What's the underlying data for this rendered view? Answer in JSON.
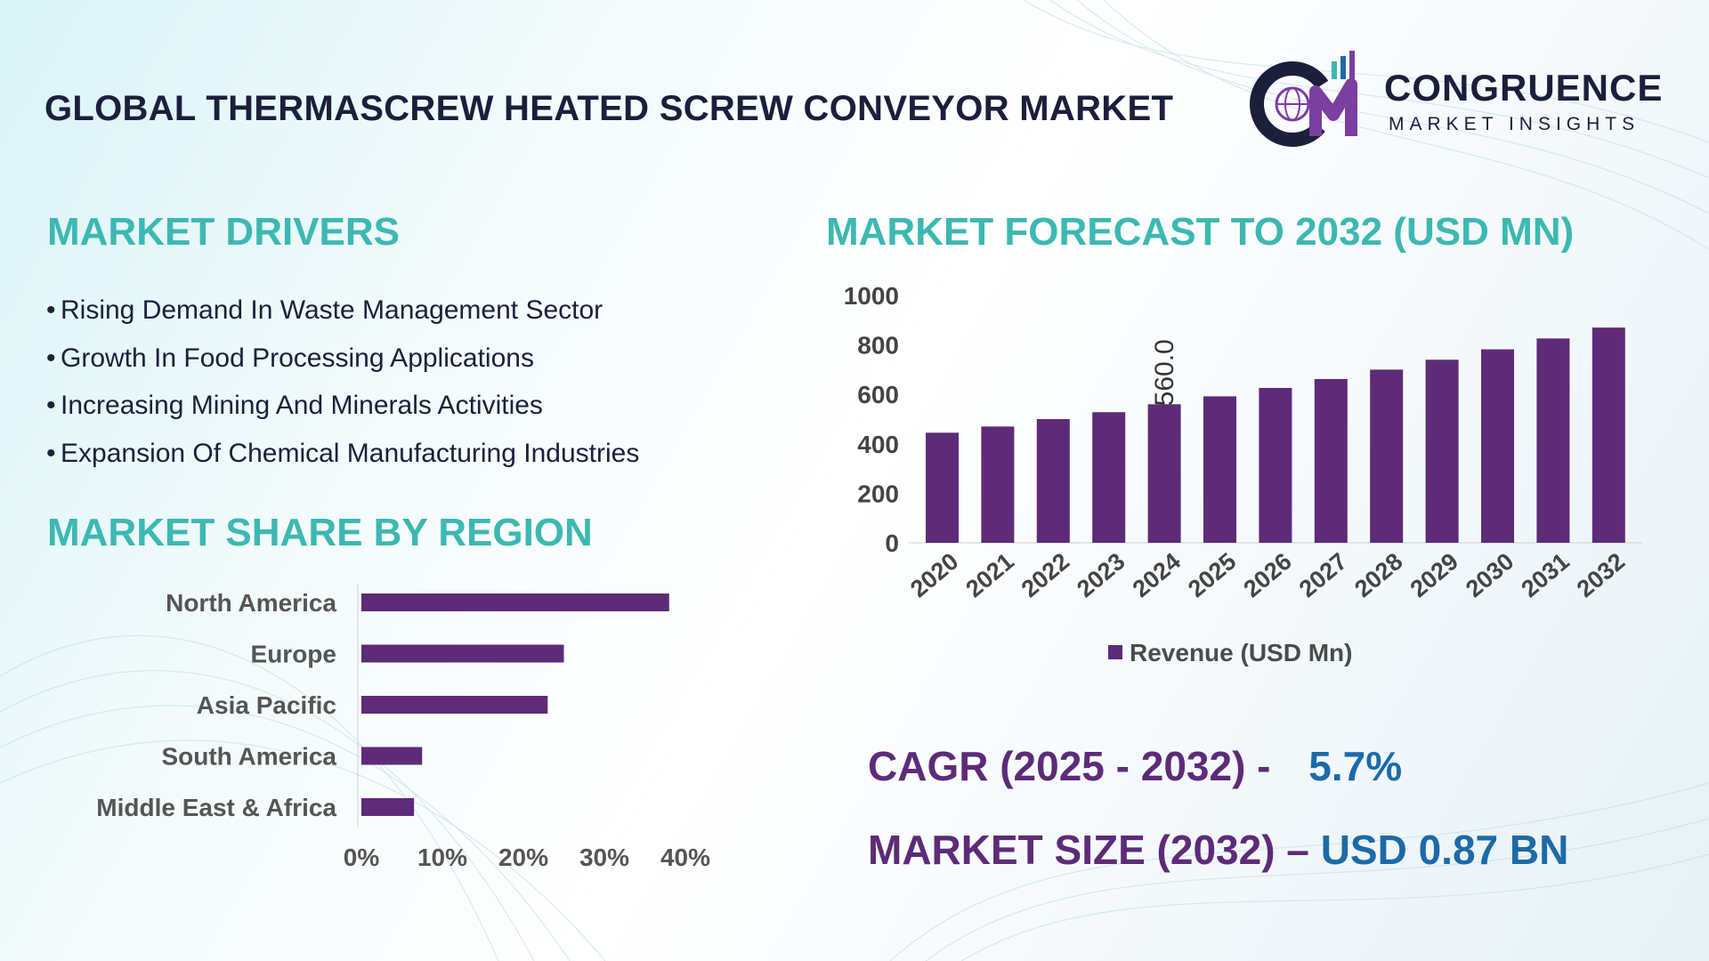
{
  "header": {
    "title": "GLOBAL THERMASCREW HEATED SCREW CONVEYOR MARKET",
    "logo_name": "CONGRUENCE",
    "logo_tagline": "MARKET INSIGHTS"
  },
  "drivers": {
    "heading": "MARKET DRIVERS",
    "items": [
      "Rising Demand In Waste Management Sector",
      "Growth In Food Processing Applications",
      "Increasing Mining And Minerals Activities",
      "Expansion Of Chemical Manufacturing Industries"
    ]
  },
  "region": {
    "heading": "MARKET SHARE BY REGION"
  },
  "forecast": {
    "heading": "MARKET FORECAST TO 2032 (USD MN)"
  },
  "stats": {
    "cagr_label": "CAGR (2025 - 2032) -",
    "cagr_value": "5.7%",
    "size_label": "MARKET SIZE (2032) –",
    "size_value": "USD 0.87 BN"
  },
  "colors": {
    "bar": "#5d2b78",
    "heading": "#3cb8b2",
    "title": "#1b1f3b",
    "value_blue": "#1c6aa8"
  },
  "chart_data": [
    {
      "type": "bar",
      "orientation": "horizontal",
      "categories": [
        "North America",
        "Europe",
        "Asia Pacific",
        "South America",
        "Middle East & Africa"
      ],
      "values": [
        38,
        25,
        23,
        7.5,
        6.5
      ],
      "unit": "%",
      "xticks": [
        "0%",
        "10%",
        "20%",
        "30%",
        "40%"
      ],
      "xlim": [
        0,
        40
      ]
    },
    {
      "type": "bar",
      "categories": [
        "2020",
        "2021",
        "2022",
        "2023",
        "2024",
        "2025",
        "2026",
        "2027",
        "2028",
        "2029",
        "2030",
        "2031",
        "2032"
      ],
      "series": [
        {
          "name": "Revenue (USD Mn)",
          "values": [
            445,
            470,
            500,
            528,
            560,
            592,
            626,
            662,
            700,
            740,
            782,
            826,
            870
          ]
        }
      ],
      "data_labels": [
        {
          "index": 4,
          "text": "560.0"
        }
      ],
      "yticks": [
        "0",
        "200",
        "400",
        "600",
        "800",
        "1000"
      ],
      "ylim": [
        0,
        1000
      ],
      "legend": "bottom"
    }
  ]
}
